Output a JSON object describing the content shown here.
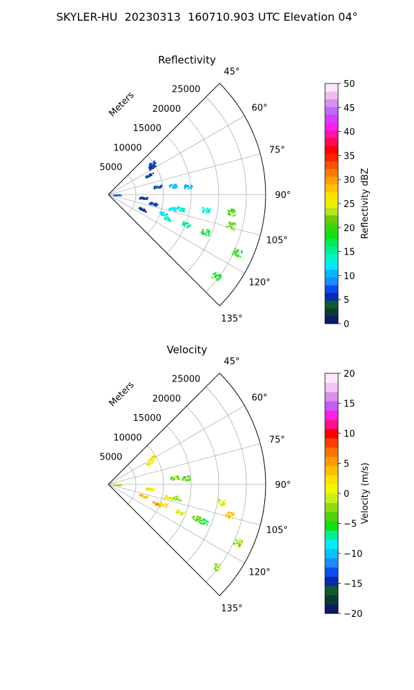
{
  "suptitle": "SKYLER-HU  20230313  160710.903 UTC Elevation 04°",
  "chart_data": [
    {
      "type": "ppi-sector",
      "title": "Reflectivity",
      "radial_label": "Meters",
      "radial_ticks": [
        5000,
        10000,
        15000,
        20000,
        25000
      ],
      "angle_ticks": [
        "45°",
        "60°",
        "75°",
        "90°",
        "105°",
        "120°",
        "135°"
      ],
      "angle_range": [
        45,
        135
      ],
      "range_max": 28500,
      "grid": true,
      "colorbar": {
        "label": "Reflectivity dBZ",
        "min": 0,
        "max": 50,
        "ticks": [
          "0",
          "5",
          "10",
          "15",
          "20",
          "25",
          "30",
          "35",
          "40",
          "45",
          "50"
        ]
      },
      "echoes": [
        {
          "azimuth": 54,
          "range": 9700,
          "value": 7
        },
        {
          "azimuth": 57,
          "range": 9200,
          "value": 5
        },
        {
          "azimuth": 64,
          "range": 8200,
          "value": 6
        },
        {
          "azimuth": 80,
          "range": 9000,
          "value": 6
        },
        {
          "azimuth": 82,
          "range": 11800,
          "value": 10
        },
        {
          "azimuth": 84,
          "range": 14500,
          "value": 11
        },
        {
          "azimuth": 90,
          "range": 1500,
          "value": 8
        },
        {
          "azimuth": 95,
          "range": 6300,
          "value": 6
        },
        {
          "azimuth": 101,
          "range": 8200,
          "value": 6
        },
        {
          "azimuth": 102,
          "range": 11900,
          "value": 12
        },
        {
          "azimuth": 101,
          "range": 13400,
          "value": 13
        },
        {
          "azimuth": 99,
          "range": 17900,
          "value": 14
        },
        {
          "azimuth": 98,
          "range": 22400,
          "value": 20
        },
        {
          "azimuth": 104,
          "range": 22800,
          "value": 22
        },
        {
          "azimuth": 113,
          "range": 6700,
          "value": 5
        },
        {
          "azimuth": 109,
          "range": 10400,
          "value": 13
        },
        {
          "azimuth": 112,
          "range": 11300,
          "value": 14
        },
        {
          "azimuth": 111,
          "range": 15000,
          "value": 15
        },
        {
          "azimuth": 111,
          "range": 18800,
          "value": 18
        },
        {
          "azimuth": 114,
          "range": 25500,
          "value": 19
        },
        {
          "azimuth": 127,
          "range": 24400,
          "value": 18
        }
      ]
    },
    {
      "type": "ppi-sector",
      "title": "Velocity",
      "radial_label": "Meters",
      "radial_ticks": [
        5000,
        10000,
        15000,
        20000,
        25000
      ],
      "angle_ticks": [
        "45°",
        "60°",
        "75°",
        "90°",
        "105°",
        "120°",
        "135°"
      ],
      "angle_range": [
        45,
        135
      ],
      "range_max": 28500,
      "grid": true,
      "colorbar": {
        "label": "Velocity (m/s)",
        "min": -20,
        "max": 20,
        "ticks": [
          "−20",
          "−15",
          "−10",
          "−5",
          "0",
          "5",
          "10",
          "15",
          "20"
        ]
      },
      "echoes": [
        {
          "azimuth": 58,
          "range": 9200,
          "value": 2
        },
        {
          "azimuth": 62,
          "range": 8500,
          "value": 1
        },
        {
          "azimuth": 84,
          "range": 12000,
          "value": -3
        },
        {
          "azimuth": 85,
          "range": 14000,
          "value": -3
        },
        {
          "azimuth": 90,
          "range": 1600,
          "value": -1
        },
        {
          "azimuth": 96,
          "range": 7500,
          "value": 1
        },
        {
          "azimuth": 102,
          "range": 11000,
          "value": 1
        },
        {
          "azimuth": 101,
          "range": 12600,
          "value": -2
        },
        {
          "azimuth": 99,
          "range": 20600,
          "value": 0
        },
        {
          "azimuth": 104,
          "range": 22600,
          "value": 4
        },
        {
          "azimuth": 108,
          "range": 6500,
          "value": 3
        },
        {
          "azimuth": 112,
          "range": 9300,
          "value": 5
        },
        {
          "azimuth": 110,
          "range": 10500,
          "value": 2
        },
        {
          "azimuth": 111,
          "range": 13800,
          "value": 0
        },
        {
          "azimuth": 111,
          "range": 16900,
          "value": -4
        },
        {
          "azimuth": 111,
          "range": 18500,
          "value": -6
        },
        {
          "azimuth": 114,
          "range": 25500,
          "value": -2
        },
        {
          "azimuth": 127,
          "range": 24400,
          "value": -2
        }
      ]
    }
  ]
}
